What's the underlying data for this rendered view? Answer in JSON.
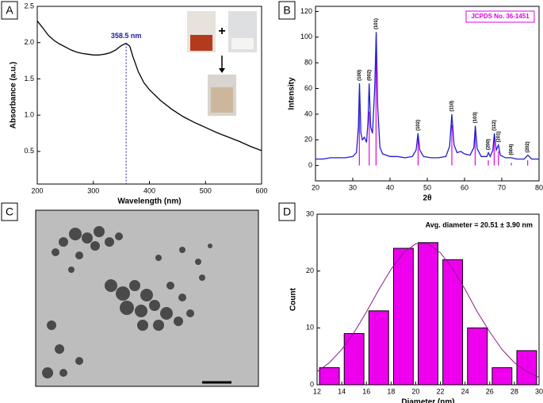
{
  "panels": [
    "A",
    "B",
    "C",
    "D"
  ],
  "chart_data": [
    {
      "type": "line",
      "x_label": "Wavelength (nm)",
      "y_label": "Absorbance (a.u.)",
      "xlim": [
        200,
        600
      ],
      "xticks": [
        200,
        300,
        400,
        500,
        600
      ],
      "ylim": [
        0.05,
        2.5
      ],
      "yticks": [
        0.5,
        {
          "value": 1,
          "label": "1.0"
        },
        1.5,
        {
          "value": 2,
          "label": "2.0"
        },
        2.5
      ],
      "x": [
        200,
        210,
        220,
        230,
        240,
        250,
        260,
        270,
        280,
        290,
        300,
        310,
        320,
        330,
        340,
        350,
        358.5,
        365,
        370,
        380,
        390,
        400,
        420,
        440,
        460,
        480,
        500,
        520,
        540,
        560,
        580,
        600
      ],
      "series": [
        {
          "color": "#000000",
          "values": [
            2.3,
            2.2,
            2.1,
            2.03,
            1.98,
            1.94,
            1.9,
            1.87,
            1.85,
            1.84,
            1.83,
            1.83,
            1.84,
            1.86,
            1.9,
            1.96,
            1.99,
            1.95,
            1.82,
            1.6,
            1.45,
            1.35,
            1.2,
            1.08,
            0.98,
            0.9,
            0.83,
            0.76,
            0.7,
            0.64,
            0.57,
            0.51
          ]
        }
      ],
      "annotation": {
        "x": 358.5,
        "y": 1.99,
        "label": "358.5 nm",
        "color": "#1a1aaa"
      },
      "inset_symbol": "+"
    },
    {
      "type": "line",
      "x_label": "2θ",
      "y_label": "Intensity",
      "xlim": [
        20,
        80
      ],
      "xticks": [
        20,
        30,
        40,
        50,
        60,
        70,
        80
      ],
      "ylim": [
        -12,
        124
      ],
      "yticks": [
        0,
        20,
        40,
        60,
        80,
        100,
        120
      ],
      "x": [
        20,
        22,
        24,
        26,
        28,
        30,
        31,
        31.5,
        31.8,
        32.2,
        32.6,
        33.1,
        33.7,
        34.1,
        34.4,
        34.8,
        35.3,
        35.9,
        36.3,
        36.7,
        37.3,
        38,
        40,
        42,
        44,
        46,
        47,
        47.5,
        48,
        49,
        51,
        53,
        55,
        56,
        56.6,
        57.2,
        58,
        59,
        60,
        61.5,
        62.5,
        62.9,
        63.4,
        64.5,
        66,
        66.4,
        66.9,
        67.6,
        68,
        68.5,
        69.1,
        69.6,
        71,
        72.6,
        74,
        76,
        77,
        78,
        80
      ],
      "series": [
        {
          "color": "#1f1fcf",
          "values": [
            5,
            5,
            6,
            6,
            6,
            7,
            10,
            30,
            64,
            25,
            20,
            22,
            18,
            35,
            64,
            30,
            25,
            60,
            104,
            45,
            14,
            9,
            7,
            7,
            6,
            7,
            12,
            25,
            12,
            7,
            6,
            6,
            7,
            15,
            40,
            16,
            10,
            11,
            9,
            8,
            14,
            31,
            13,
            7,
            7,
            10,
            7,
            12,
            25,
            12,
            16,
            8,
            6,
            6,
            5,
            5,
            8,
            5,
            5
          ]
        }
      ],
      "reference": {
        "name": "JCPDS No. 36-1451",
        "color": "#e000e0",
        "x": [
          31.77,
          34.42,
          36.25,
          47.54,
          56.6,
          62.86,
          66.38,
          67.96,
          69.1,
          72.56,
          76.95
        ],
        "values": [
          58,
          42,
          100,
          22,
          32,
          28,
          4,
          22,
          11,
          2,
          4
        ],
        "labels": [
          "(100)",
          "(002)",
          "(101)",
          "(102)",
          "(110)",
          "(103)",
          "(200)",
          "(112)",
          "(201)",
          "(004)",
          "(202)"
        ],
        "label_y": [
          66,
          66,
          106,
          27,
          42,
          33,
          12,
          27,
          18,
          8,
          10
        ]
      }
    },
    {
      "type": "histogram",
      "x_label": "Diameter (nm)",
      "y_label": "Count",
      "xlim": [
        12,
        30
      ],
      "xticks": [
        12,
        14,
        16,
        18,
        20,
        22,
        24,
        26,
        28,
        30
      ],
      "ylim": [
        0,
        30
      ],
      "yticks": [
        0,
        10,
        20,
        30
      ],
      "bins": [
        12,
        14,
        16,
        18,
        20,
        22,
        24,
        26,
        28,
        30
      ],
      "values": [
        3,
        9,
        13,
        24,
        25,
        22,
        10,
        3,
        6
      ],
      "color": "#ee00ee",
      "fit": {
        "color": "#8b1a8b",
        "x": [
          12,
          13,
          14,
          15,
          16,
          17,
          18,
          19,
          20,
          21,
          22,
          23,
          24,
          25,
          26,
          27,
          28,
          29,
          30
        ],
        "values": [
          2.3,
          3.9,
          6.2,
          9.2,
          12.8,
          16.7,
          20.3,
          23.2,
          24.8,
          24.8,
          23.2,
          20.4,
          16.8,
          12.8,
          9.3,
          6.2,
          3.9,
          2.3,
          1.3
        ]
      },
      "annotation": "Avg. diameter = 20.51 ± 3.90 nm"
    }
  ]
}
